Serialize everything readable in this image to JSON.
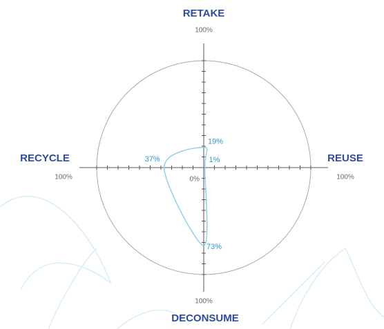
{
  "chart_data": {
    "type": "radar",
    "axes": [
      "RETAKE",
      "REUSE",
      "DECONSUME",
      "RECYCLE"
    ],
    "values": [
      19,
      1,
      73,
      37
    ],
    "value_labels": [
      "19%",
      "1%",
      "73%",
      "37%"
    ],
    "rlim": [
      0,
      100
    ],
    "rticks": [
      {
        "value": 0,
        "label": "0%"
      },
      10,
      20,
      30,
      40,
      50,
      60,
      70,
      80,
      90,
      {
        "value": 100,
        "label": "100%"
      }
    ],
    "color": "#8fd0ec"
  }
}
